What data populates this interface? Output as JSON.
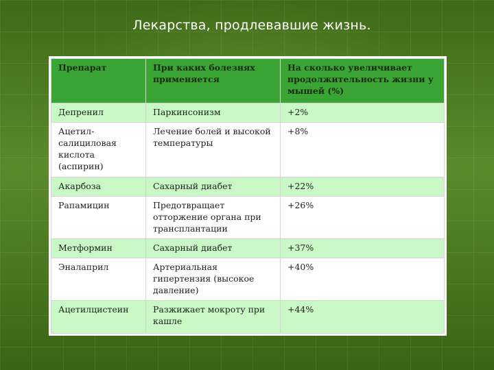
{
  "slide": {
    "title": "Лекарства, продлевавшие жизнь."
  },
  "table": {
    "headers": [
      "Препарат",
      "При каких болезнях применяется",
      "На сколько увеличивает продолжительность жизни у мышей (%)"
    ],
    "rows": [
      [
        "Депренил",
        "Паркинсонизм",
        "+2%"
      ],
      [
        "Ацетил-салициловая кислота (аспирин)",
        "Лечение болей и высокой температуры",
        "+8%"
      ],
      [
        "Акарбоза",
        "Сахарный диабет",
        "+22%"
      ],
      [
        "Рапамицин",
        "Предотвращает отторжение органа при трансплантации",
        "+26%"
      ],
      [
        "Метформин",
        "Сахарный диабет",
        "+37%"
      ],
      [
        "Эналаприл",
        "Артериальная гипертензия (высокое давление)",
        "+40%"
      ],
      [
        "Ацетилцистеин",
        "Разжижает мокроту при кашле",
        "+44%"
      ]
    ]
  }
}
